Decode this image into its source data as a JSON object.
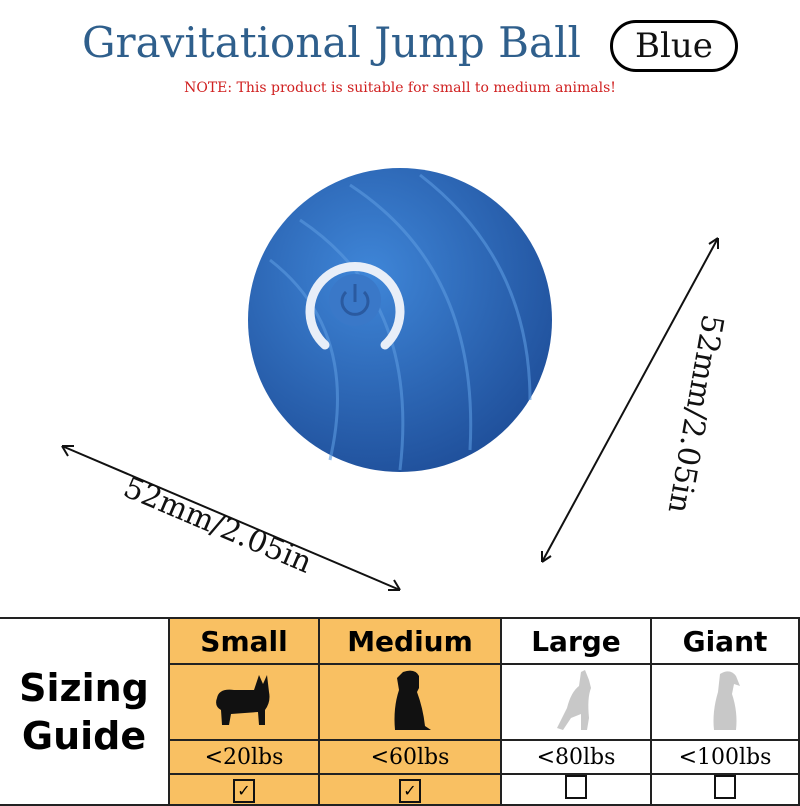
{
  "header": {
    "title": "Gravitational Jump Ball",
    "color_badge": "Blue",
    "note": "NOTE: This product is suitable for small to medium animals!"
  },
  "product": {
    "name": "blue ball",
    "dimension_width": "52mm/2.05in",
    "dimension_height": "52mm/2.05in",
    "color": "#2f6bc0"
  },
  "sizing": {
    "label_line1": "Sizing",
    "label_line2": "Guide",
    "accent": "#f9c062",
    "columns": [
      {
        "name": "Small",
        "weight": "<20lbs",
        "checked": true,
        "mark": "✓"
      },
      {
        "name": "Medium",
        "weight": "<60lbs",
        "checked": true,
        "mark": "✓"
      },
      {
        "name": "Large",
        "weight": "<80lbs",
        "checked": false,
        "mark": ""
      },
      {
        "name": "Giant",
        "weight": "<100lbs",
        "checked": false,
        "mark": ""
      }
    ]
  }
}
